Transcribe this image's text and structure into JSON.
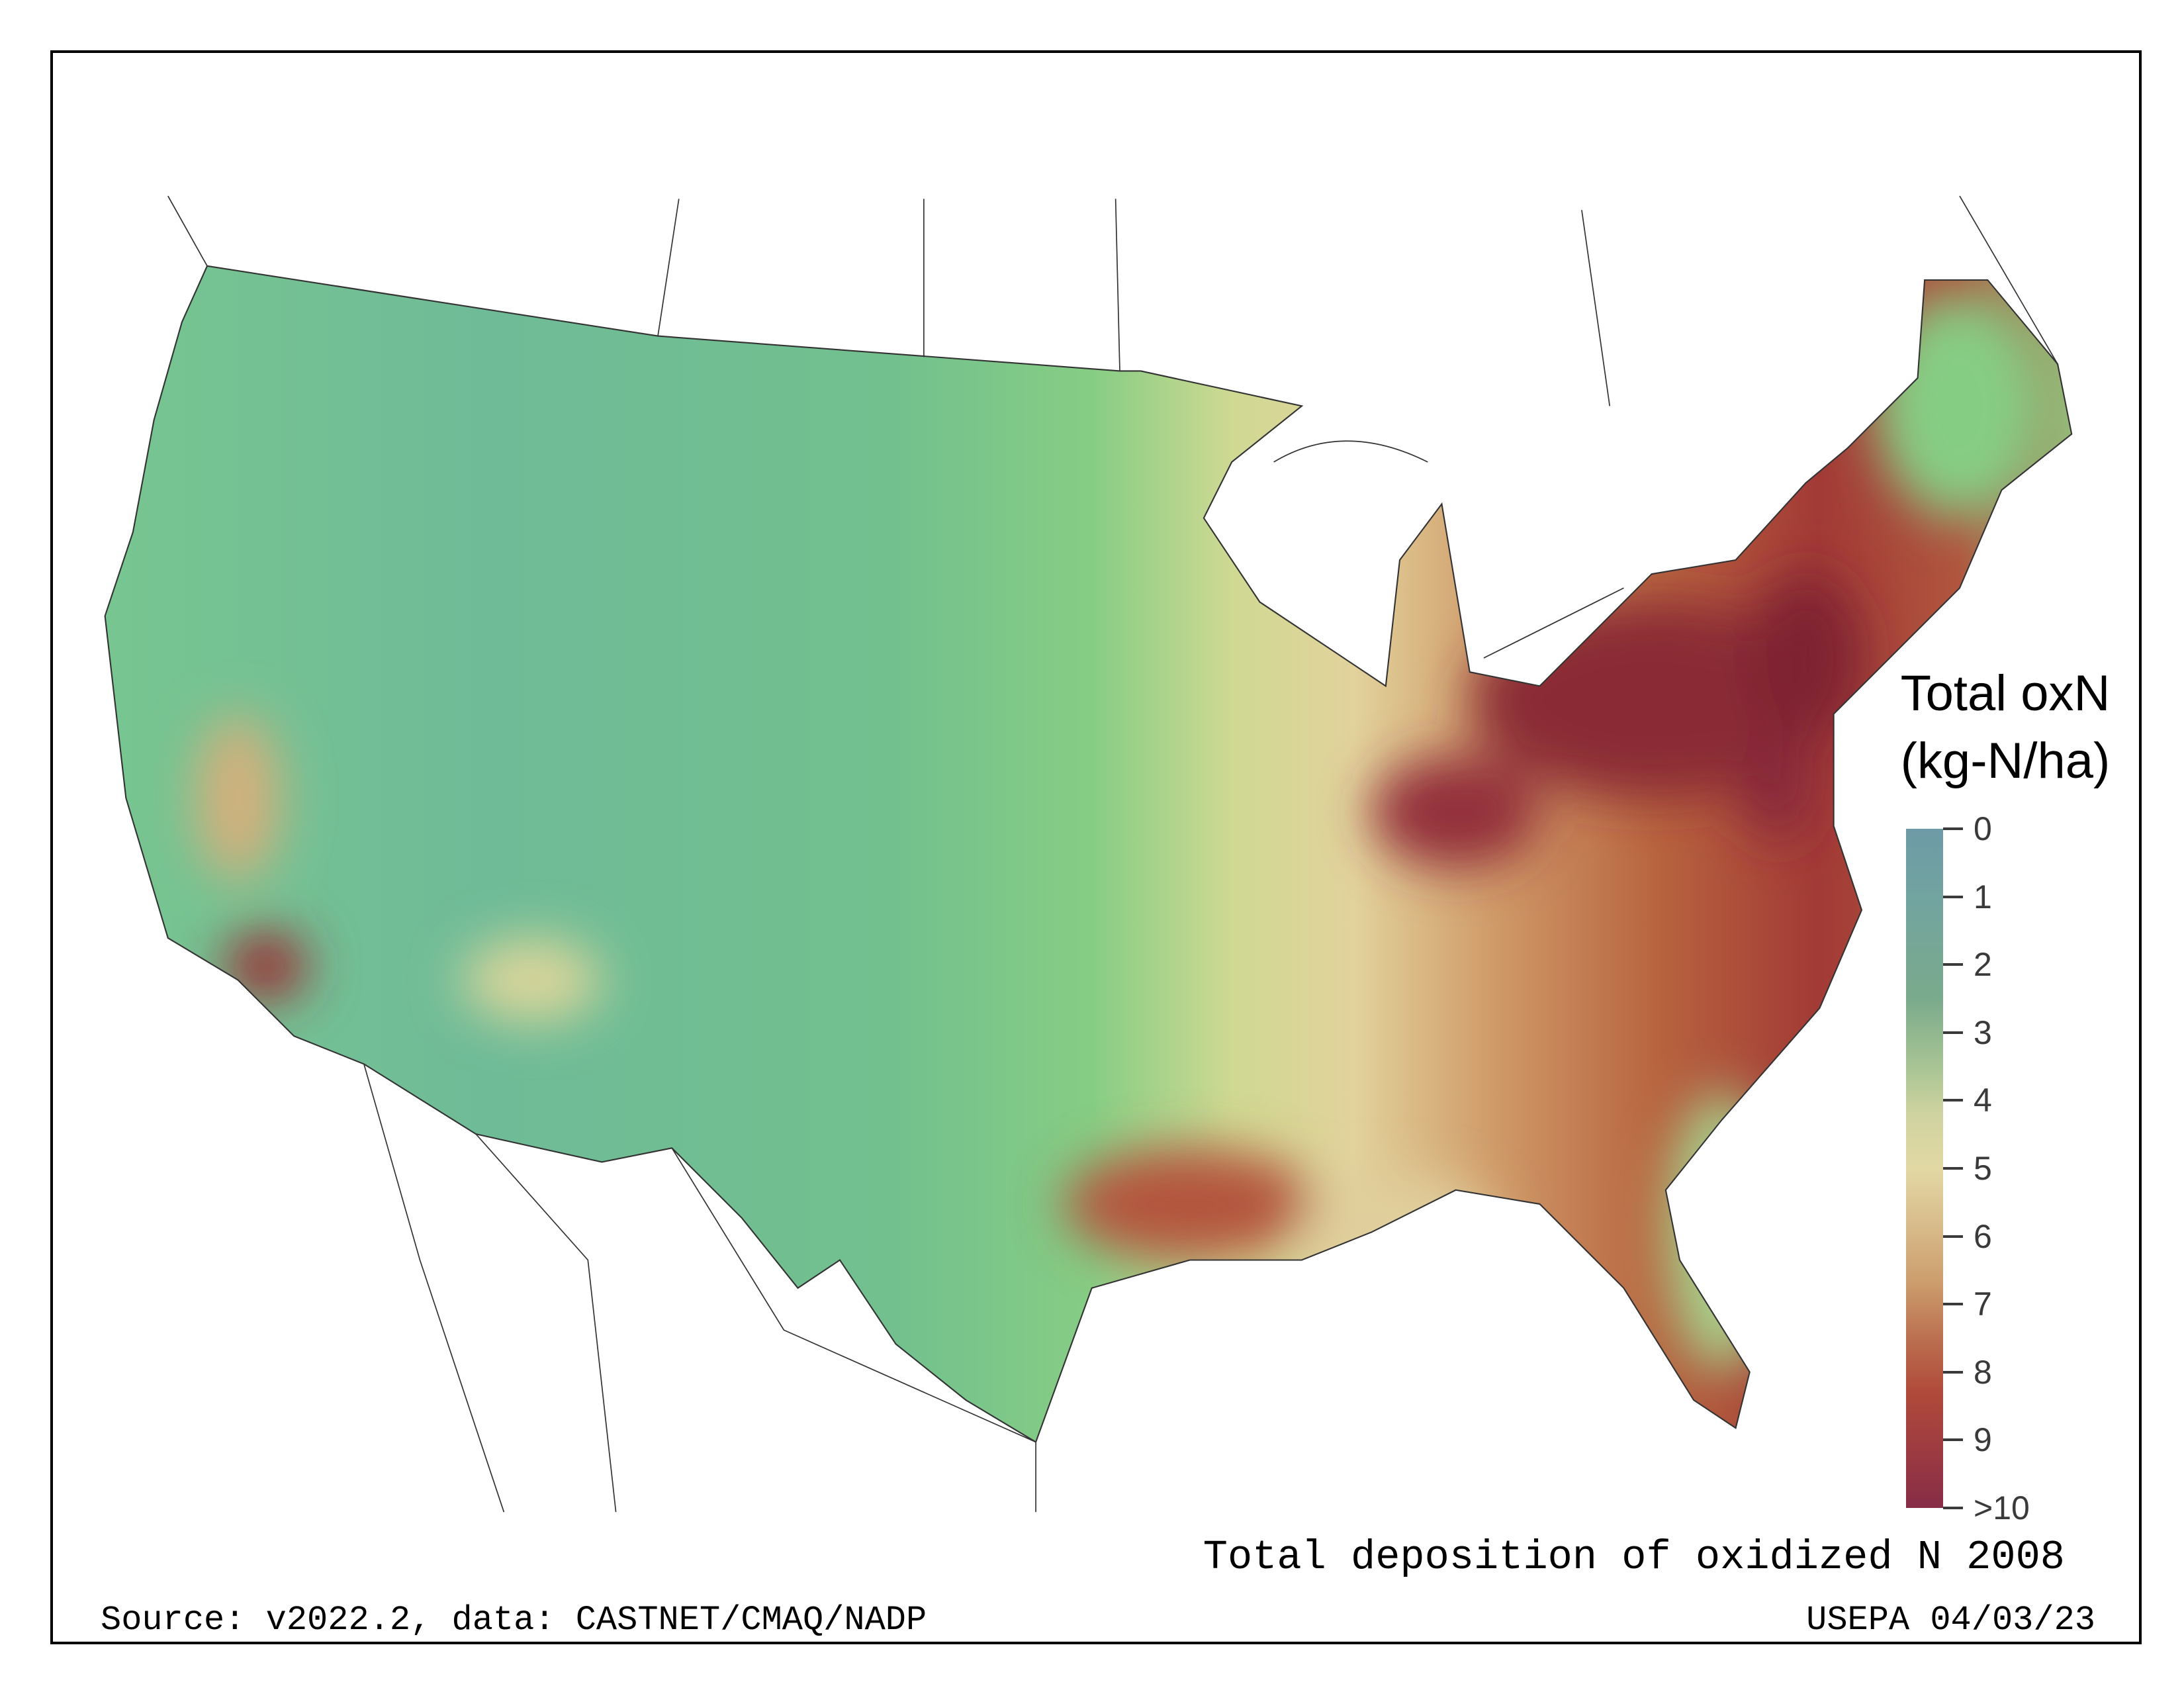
{
  "chart_data": {
    "type": "heatmap",
    "title": "Total deposition of oxidized N 2008",
    "legend": {
      "title_line1": "Total oxN",
      "title_line2": "(kg-N/ha)",
      "placement": "right",
      "ticks": [
        "0",
        "1",
        "2",
        "3",
        "4",
        "5",
        "6",
        "7",
        "8",
        "9",
        ">10"
      ],
      "range": [
        0,
        10
      ],
      "colors": [
        "#6d9aa6",
        "#7aaa8c",
        "#a8c494",
        "#e2d8a4",
        "#cc9c6c",
        "#b04a3a",
        "#862d46"
      ]
    },
    "region": "Contiguous United States",
    "regional_summary": [
      {
        "region": "West / Mountain",
        "approx_value": 2
      },
      {
        "region": "Great Plains",
        "approx_value": 3.5
      },
      {
        "region": "Midwest / South",
        "approx_value": 6
      },
      {
        "region": "Ohio Valley / Mid-Atlantic / Northeast",
        "approx_value": 9.5
      },
      {
        "region": "Southern California",
        "approx_value": 9
      },
      {
        "region": "Florida / Maine",
        "approx_value": 4
      }
    ]
  },
  "footer": {
    "source": "Source: v2022.2, data: CASTNET/CMAQ/NADP",
    "credit": "USEPA 04/03/23"
  }
}
